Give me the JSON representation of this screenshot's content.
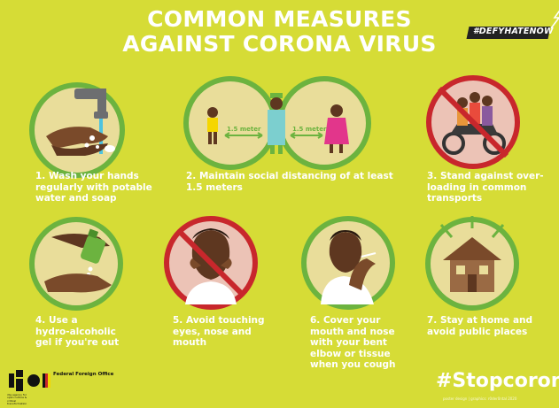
{
  "header": {
    "title_line1": "COMMON MEASURES",
    "title_line2": "AGAINST CORONA VIRUS",
    "campaign_tag": "#DEFYHATENOW"
  },
  "measures": [
    {
      "number": "1.",
      "lines": [
        "1. Wash your hands",
        "regularly with potable",
        "water and soap"
      ],
      "icon": "hand-washing-icon",
      "prohibited": false
    },
    {
      "number": "2.",
      "lines": [
        "2. Maintain social distancing of at least",
        "1.5 meters"
      ],
      "icon": "social-distance-icon",
      "prohibited": false,
      "distance_left": "1.5 meter",
      "distance_right": "1.5 meter"
    },
    {
      "number": "3.",
      "lines": [
        "3. Stand against over-",
        "loading in common",
        "transports"
      ],
      "icon": "overloaded-motorbike-icon",
      "prohibited": true
    },
    {
      "number": "4.",
      "lines": [
        "4. Use a",
        "hydro-alcoholic",
        "gel if you're out"
      ],
      "icon": "hand-sanitizer-icon",
      "prohibited": false
    },
    {
      "number": "5.",
      "lines": [
        "5. Avoid touching",
        "eyes, nose and",
        "mouth"
      ],
      "icon": "face-touching-icon",
      "prohibited": true
    },
    {
      "number": "6.",
      "lines": [
        "6. Cover your",
        "mouth and nose",
        "with your bent",
        "elbow or tissue",
        "when you cough"
      ],
      "icon": "coughing-person-icon",
      "prohibited": false
    },
    {
      "number": "7.",
      "lines": [
        "7. Stay at home and",
        "avoid public places"
      ],
      "icon": "house-icon",
      "prohibited": false
    }
  ],
  "footer": {
    "hashtag": "#Stopcorona",
    "credit": "poster design | graphics: r0der0ntal 2020",
    "ministry_label": "Federal Foreign Office",
    "ngo_label": "r0g agency for open culture & critical transformation"
  },
  "colors": {
    "background": "#d6dc36",
    "circle_ring_green": "#6cb33f",
    "circle_fill": "#e9dd9a",
    "prohibited_ring": "#c8272c",
    "prohibited_fill": "#ecc3b6",
    "text": "#ffffff"
  }
}
